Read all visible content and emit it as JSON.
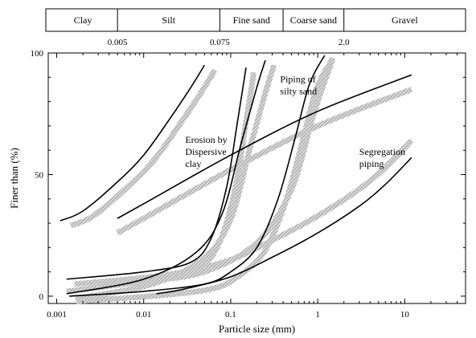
{
  "chart_data": {
    "type": "line",
    "xlabel": "Particle size (mm)",
    "ylabel": "Finer than (%)",
    "x_scale": "log",
    "xlim": [
      0.0008,
      50
    ],
    "ylim": [
      -3,
      100
    ],
    "x_ticks": [
      {
        "value": 0.001,
        "label": "0.001"
      },
      {
        "value": 0.01,
        "label": "0.01"
      },
      {
        "value": 0.1,
        "label": "0.1"
      },
      {
        "value": 1,
        "label": "1"
      },
      {
        "value": 10,
        "label": "10"
      }
    ],
    "y_ticks": [
      {
        "value": 0,
        "label": "0"
      },
      {
        "value": 50,
        "label": "50"
      },
      {
        "value": 100,
        "label": "100"
      }
    ],
    "soil_classes": [
      {
        "label": "Clay",
        "from": 0.0008,
        "to": 0.005
      },
      {
        "label": "Silt",
        "from": 0.005,
        "to": 0.075
      },
      {
        "label": "Fine sand",
        "from": 0.075,
        "to": 0.4
      },
      {
        "label": "Coarse sand",
        "from": 0.4,
        "to": 2.0
      },
      {
        "label": "Gravel",
        "from": 2.0,
        "to": 50
      }
    ],
    "boundary_labels": [
      {
        "value": 0.005,
        "label": "0.005"
      },
      {
        "value": 0.075,
        "label": "0.075"
      },
      {
        "value": 2.0,
        "label": "2.0"
      }
    ],
    "zone_labels": [
      {
        "lines": [
          "Erosion by",
          "Dispersive",
          "clay"
        ],
        "x": 0.03,
        "y": 63
      },
      {
        "lines": [
          "Piping of",
          "silty sand"
        ],
        "x": 0.37,
        "y": 88
      },
      {
        "lines": [
          "Segregation",
          "piping"
        ],
        "x": 3.0,
        "y": 58
      }
    ],
    "series": [
      {
        "id": "a",
        "points": [
          [
            0.0011,
            31
          ],
          [
            0.002,
            35
          ],
          [
            0.005,
            47
          ],
          [
            0.01,
            58
          ],
          [
            0.02,
            73
          ],
          [
            0.035,
            86
          ],
          [
            0.05,
            95
          ]
        ]
      },
      {
        "id": "b",
        "points": [
          [
            0.0013,
            7
          ],
          [
            0.01,
            10
          ],
          [
            0.035,
            14
          ],
          [
            0.06,
            24
          ],
          [
            0.09,
            45
          ],
          [
            0.12,
            72
          ],
          [
            0.15,
            94
          ]
        ]
      },
      {
        "id": "c",
        "points": [
          [
            0.0013,
            1
          ],
          [
            0.01,
            7
          ],
          [
            0.04,
            18
          ],
          [
            0.08,
            34
          ],
          [
            0.13,
            62
          ],
          [
            0.2,
            86
          ],
          [
            0.25,
            97
          ]
        ]
      },
      {
        "id": "d",
        "points": [
          [
            0.0014,
            0
          ],
          [
            0.01,
            2
          ],
          [
            0.05,
            5
          ],
          [
            0.1,
            10
          ],
          [
            0.2,
            20
          ],
          [
            0.35,
            40
          ],
          [
            0.55,
            65
          ],
          [
            0.8,
            87
          ],
          [
            1.2,
            99
          ]
        ]
      },
      {
        "id": "e",
        "points": [
          [
            0.005,
            32
          ],
          [
            0.01,
            38
          ],
          [
            0.1,
            58
          ],
          [
            1,
            76
          ],
          [
            12,
            91
          ]
        ]
      },
      {
        "id": "f",
        "points": [
          [
            0.014,
            1
          ],
          [
            0.03,
            3
          ],
          [
            0.1,
            8
          ],
          [
            0.3,
            16
          ],
          [
            1,
            26
          ],
          [
            3,
            37
          ],
          [
            6,
            46
          ],
          [
            12,
            57
          ]
        ]
      }
    ],
    "bands": [
      {
        "id": "band-a",
        "of": "a",
        "dx": 0.12,
        "dy": -2
      },
      {
        "id": "band-b",
        "of": "b",
        "dx": 0.09,
        "dy": -2
      },
      {
        "id": "band-c",
        "of": "c",
        "dx": 0.1,
        "dy": -2
      },
      {
        "id": "band-d",
        "of": "d",
        "dx": 0.08,
        "dy": -2
      },
      {
        "id": "band-e",
        "of": "e",
        "dx": 0.0,
        "dy": -6
      },
      {
        "id": "band-f",
        "of": "f",
        "dx": 0.0,
        "dy": 7
      },
      {
        "id": "band-g",
        "points": [
          [
            0.0013,
            2
          ],
          [
            0.01,
            6
          ],
          [
            0.05,
            10
          ],
          [
            0.2,
            22
          ],
          [
            0.5,
            44
          ],
          [
            0.9,
            75
          ],
          [
            1.5,
            98
          ]
        ]
      }
    ],
    "colors": {
      "line": "#000000",
      "band": "#b8b8b8",
      "axis": "#000000"
    }
  }
}
